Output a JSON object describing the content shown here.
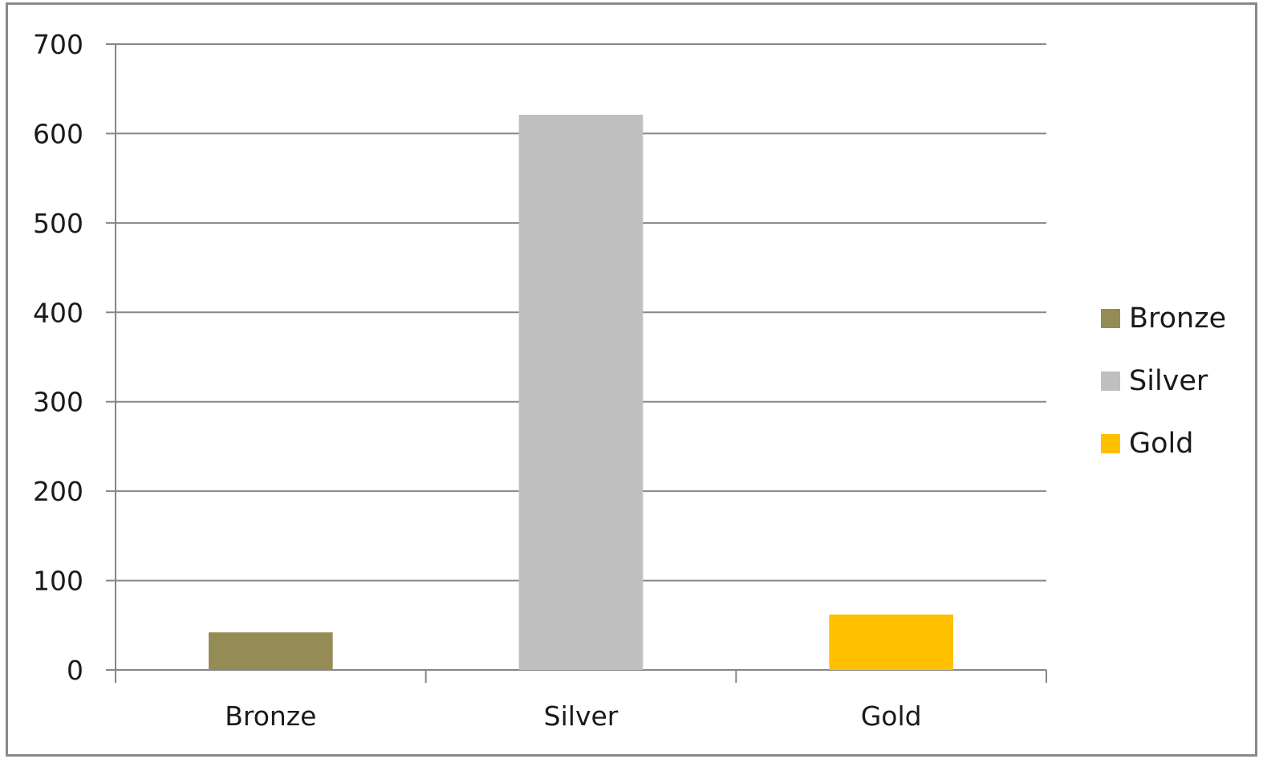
{
  "chart_data": {
    "type": "bar",
    "categories": [
      "Bronze",
      "Silver",
      "Gold"
    ],
    "values": [
      42,
      621,
      62
    ],
    "colors": [
      "#958b55",
      "#bfbfbf",
      "#ffc000"
    ],
    "ylim": [
      0,
      700
    ],
    "yticks": [
      0,
      100,
      200,
      300,
      400,
      500,
      600,
      700
    ],
    "title": "",
    "xlabel": "",
    "ylabel": "",
    "grid": true,
    "legend": {
      "position": "right",
      "entries": [
        "Bronze",
        "Silver",
        "Gold"
      ]
    }
  }
}
